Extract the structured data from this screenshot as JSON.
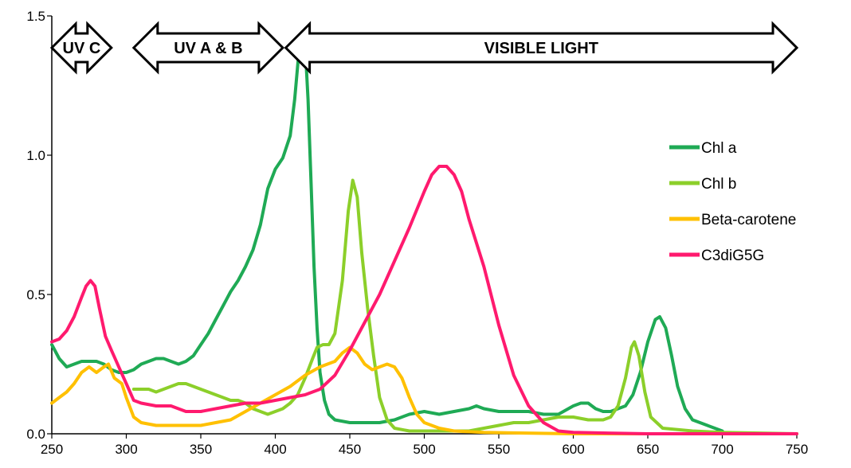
{
  "chart_data": {
    "type": "line",
    "title": "",
    "xlabel": "",
    "ylabel": "",
    "xlim": [
      250,
      750
    ],
    "ylim": [
      0,
      1.5
    ],
    "x_ticks": [
      "250",
      "300",
      "350",
      "400",
      "450",
      "500",
      "550",
      "600",
      "650",
      "700",
      "750"
    ],
    "y_ticks": [
      "0.0",
      "0.5",
      "1.0",
      "1.5"
    ],
    "grid": false,
    "legend_position": "right",
    "bands": [
      {
        "label": "UV C",
        "from": 250,
        "to": 290
      },
      {
        "label": "UV A & B",
        "from": 305,
        "to": 405
      },
      {
        "label": "VISIBLE LIGHT",
        "from": 407,
        "to": 750
      }
    ],
    "series": [
      {
        "name": "Chl a",
        "color": "#1faa55",
        "points": [
          [
            250,
            0.32
          ],
          [
            255,
            0.27
          ],
          [
            260,
            0.24
          ],
          [
            265,
            0.25
          ],
          [
            270,
            0.26
          ],
          [
            275,
            0.26
          ],
          [
            280,
            0.26
          ],
          [
            285,
            0.25
          ],
          [
            290,
            0.23
          ],
          [
            295,
            0.22
          ],
          [
            300,
            0.22
          ],
          [
            305,
            0.23
          ],
          [
            310,
            0.25
          ],
          [
            315,
            0.26
          ],
          [
            320,
            0.27
          ],
          [
            325,
            0.27
          ],
          [
            330,
            0.26
          ],
          [
            335,
            0.25
          ],
          [
            340,
            0.26
          ],
          [
            345,
            0.28
          ],
          [
            350,
            0.32
          ],
          [
            355,
            0.36
          ],
          [
            360,
            0.41
          ],
          [
            365,
            0.46
          ],
          [
            370,
            0.51
          ],
          [
            375,
            0.55
          ],
          [
            380,
            0.6
          ],
          [
            385,
            0.66
          ],
          [
            390,
            0.75
          ],
          [
            395,
            0.88
          ],
          [
            400,
            0.95
          ],
          [
            405,
            0.99
          ],
          [
            410,
            1.07
          ],
          [
            413,
            1.2
          ],
          [
            416,
            1.38
          ],
          [
            418,
            1.44
          ],
          [
            420,
            1.4
          ],
          [
            422,
            1.2
          ],
          [
            424,
            0.9
          ],
          [
            426,
            0.6
          ],
          [
            428,
            0.38
          ],
          [
            430,
            0.22
          ],
          [
            433,
            0.12
          ],
          [
            436,
            0.07
          ],
          [
            440,
            0.05
          ],
          [
            450,
            0.04
          ],
          [
            460,
            0.04
          ],
          [
            470,
            0.04
          ],
          [
            480,
            0.05
          ],
          [
            490,
            0.07
          ],
          [
            500,
            0.08
          ],
          [
            510,
            0.07
          ],
          [
            520,
            0.08
          ],
          [
            530,
            0.09
          ],
          [
            535,
            0.1
          ],
          [
            540,
            0.09
          ],
          [
            550,
            0.08
          ],
          [
            560,
            0.08
          ],
          [
            570,
            0.08
          ],
          [
            580,
            0.07
          ],
          [
            590,
            0.07
          ],
          [
            600,
            0.1
          ],
          [
            605,
            0.11
          ],
          [
            610,
            0.11
          ],
          [
            615,
            0.09
          ],
          [
            620,
            0.08
          ],
          [
            625,
            0.08
          ],
          [
            630,
            0.09
          ],
          [
            635,
            0.1
          ],
          [
            640,
            0.14
          ],
          [
            645,
            0.22
          ],
          [
            650,
            0.33
          ],
          [
            655,
            0.41
          ],
          [
            658,
            0.42
          ],
          [
            662,
            0.38
          ],
          [
            666,
            0.28
          ],
          [
            670,
            0.17
          ],
          [
            675,
            0.09
          ],
          [
            680,
            0.05
          ],
          [
            690,
            0.03
          ],
          [
            700,
            0.01
          ]
        ]
      },
      {
        "name": "Chl b",
        "color": "#8ccf2a",
        "points": [
          [
            305,
            0.16
          ],
          [
            310,
            0.16
          ],
          [
            315,
            0.16
          ],
          [
            320,
            0.15
          ],
          [
            325,
            0.16
          ],
          [
            330,
            0.17
          ],
          [
            335,
            0.18
          ],
          [
            340,
            0.18
          ],
          [
            345,
            0.17
          ],
          [
            350,
            0.16
          ],
          [
            355,
            0.15
          ],
          [
            360,
            0.14
          ],
          [
            365,
            0.13
          ],
          [
            370,
            0.12
          ],
          [
            375,
            0.12
          ],
          [
            380,
            0.11
          ],
          [
            385,
            0.09
          ],
          [
            390,
            0.08
          ],
          [
            395,
            0.07
          ],
          [
            400,
            0.08
          ],
          [
            405,
            0.09
          ],
          [
            410,
            0.11
          ],
          [
            415,
            0.14
          ],
          [
            420,
            0.2
          ],
          [
            425,
            0.27
          ],
          [
            428,
            0.31
          ],
          [
            432,
            0.32
          ],
          [
            436,
            0.32
          ],
          [
            440,
            0.36
          ],
          [
            445,
            0.55
          ],
          [
            449,
            0.8
          ],
          [
            452,
            0.91
          ],
          [
            455,
            0.85
          ],
          [
            458,
            0.65
          ],
          [
            462,
            0.45
          ],
          [
            466,
            0.28
          ],
          [
            470,
            0.13
          ],
          [
            475,
            0.05
          ],
          [
            480,
            0.02
          ],
          [
            490,
            0.01
          ],
          [
            500,
            0.01
          ],
          [
            510,
            0.01
          ],
          [
            520,
            0.01
          ],
          [
            530,
            0.01
          ],
          [
            540,
            0.02
          ],
          [
            550,
            0.03
          ],
          [
            560,
            0.04
          ],
          [
            570,
            0.04
          ],
          [
            580,
            0.05
          ],
          [
            590,
            0.06
          ],
          [
            600,
            0.06
          ],
          [
            610,
            0.05
          ],
          [
            620,
            0.05
          ],
          [
            625,
            0.06
          ],
          [
            630,
            0.1
          ],
          [
            635,
            0.2
          ],
          [
            639,
            0.31
          ],
          [
            641,
            0.33
          ],
          [
            644,
            0.28
          ],
          [
            648,
            0.15
          ],
          [
            652,
            0.06
          ],
          [
            660,
            0.02
          ],
          [
            680,
            0.01
          ],
          [
            700,
            0.005
          ],
          [
            750,
            0.0
          ]
        ]
      },
      {
        "name": "Beta-carotene",
        "color": "#ffc000",
        "points": [
          [
            250,
            0.11
          ],
          [
            255,
            0.13
          ],
          [
            260,
            0.15
          ],
          [
            265,
            0.18
          ],
          [
            270,
            0.22
          ],
          [
            275,
            0.24
          ],
          [
            280,
            0.22
          ],
          [
            285,
            0.24
          ],
          [
            288,
            0.25
          ],
          [
            292,
            0.2
          ],
          [
            297,
            0.18
          ],
          [
            300,
            0.13
          ],
          [
            305,
            0.06
          ],
          [
            310,
            0.04
          ],
          [
            320,
            0.03
          ],
          [
            330,
            0.03
          ],
          [
            340,
            0.03
          ],
          [
            350,
            0.03
          ],
          [
            360,
            0.04
          ],
          [
            370,
            0.05
          ],
          [
            380,
            0.08
          ],
          [
            390,
            0.11
          ],
          [
            400,
            0.14
          ],
          [
            410,
            0.17
          ],
          [
            420,
            0.21
          ],
          [
            430,
            0.24
          ],
          [
            440,
            0.26
          ],
          [
            445,
            0.29
          ],
          [
            450,
            0.31
          ],
          [
            455,
            0.29
          ],
          [
            460,
            0.25
          ],
          [
            465,
            0.23
          ],
          [
            470,
            0.24
          ],
          [
            475,
            0.25
          ],
          [
            480,
            0.24
          ],
          [
            485,
            0.2
          ],
          [
            490,
            0.13
          ],
          [
            495,
            0.07
          ],
          [
            500,
            0.04
          ],
          [
            510,
            0.02
          ],
          [
            520,
            0.01
          ],
          [
            540,
            0.005
          ],
          [
            600,
            0.0
          ],
          [
            700,
            0.0
          ],
          [
            750,
            0.0
          ]
        ]
      },
      {
        "name": "C3diG5G",
        "color": "#ff1a6e",
        "points": [
          [
            250,
            0.33
          ],
          [
            255,
            0.34
          ],
          [
            260,
            0.37
          ],
          [
            265,
            0.42
          ],
          [
            270,
            0.49
          ],
          [
            273,
            0.53
          ],
          [
            276,
            0.55
          ],
          [
            279,
            0.53
          ],
          [
            282,
            0.45
          ],
          [
            286,
            0.35
          ],
          [
            290,
            0.3
          ],
          [
            295,
            0.24
          ],
          [
            300,
            0.18
          ],
          [
            305,
            0.12
          ],
          [
            310,
            0.11
          ],
          [
            320,
            0.1
          ],
          [
            330,
            0.1
          ],
          [
            340,
            0.08
          ],
          [
            350,
            0.08
          ],
          [
            360,
            0.09
          ],
          [
            370,
            0.1
          ],
          [
            380,
            0.11
          ],
          [
            390,
            0.11
          ],
          [
            400,
            0.12
          ],
          [
            410,
            0.13
          ],
          [
            420,
            0.14
          ],
          [
            430,
            0.16
          ],
          [
            440,
            0.21
          ],
          [
            450,
            0.3
          ],
          [
            460,
            0.4
          ],
          [
            470,
            0.5
          ],
          [
            480,
            0.62
          ],
          [
            490,
            0.74
          ],
          [
            500,
            0.87
          ],
          [
            505,
            0.93
          ],
          [
            510,
            0.96
          ],
          [
            515,
            0.96
          ],
          [
            520,
            0.93
          ],
          [
            525,
            0.87
          ],
          [
            530,
            0.77
          ],
          [
            540,
            0.6
          ],
          [
            550,
            0.39
          ],
          [
            560,
            0.21
          ],
          [
            570,
            0.1
          ],
          [
            580,
            0.04
          ],
          [
            590,
            0.01
          ],
          [
            600,
            0.005
          ],
          [
            650,
            0.0
          ],
          [
            750,
            0.0
          ]
        ]
      }
    ]
  }
}
